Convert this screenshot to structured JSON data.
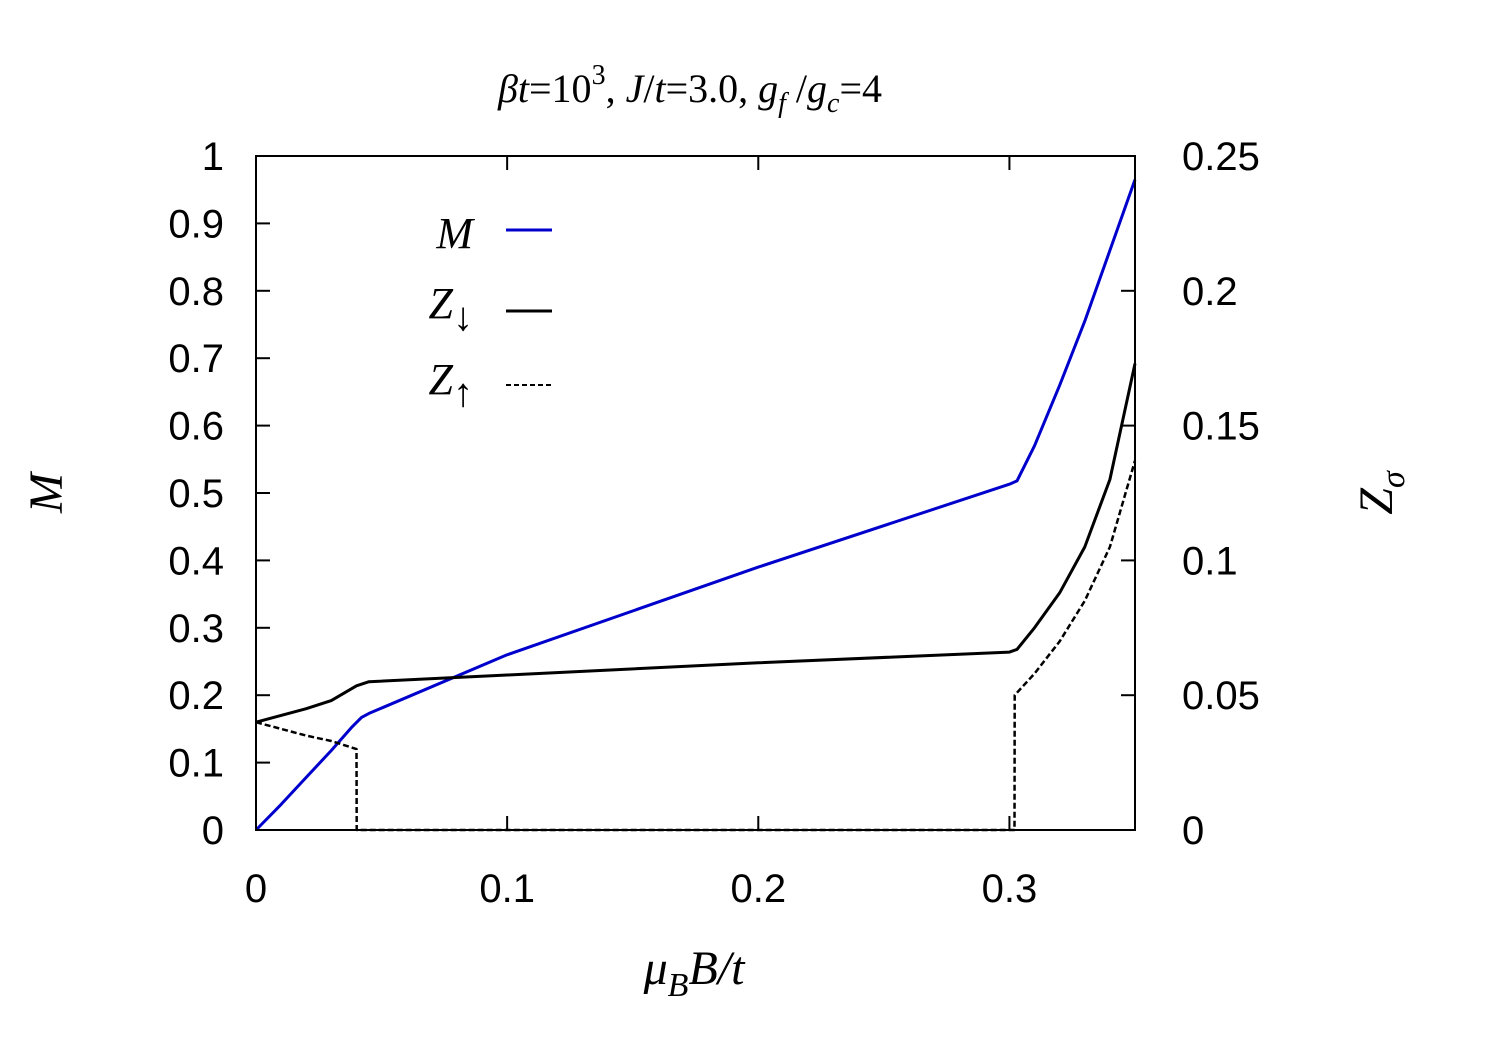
{
  "chart_data": {
    "type": "line",
    "title": "βt=10³, J/t=3.0, g_f/g_c=4",
    "xlabel": "μ_B B/t",
    "ylabel_left": "M",
    "ylabel_right": "Z_σ",
    "xlim": [
      0,
      0.35
    ],
    "ylim_left": [
      0,
      1
    ],
    "ylim_right": [
      0,
      0.25
    ],
    "x_ticks": [
      "0",
      "0.1",
      "0.2",
      "0.3"
    ],
    "y_left_ticks": [
      "0",
      "0.1",
      "0.2",
      "0.3",
      "0.4",
      "0.5",
      "0.6",
      "0.7",
      "0.8",
      "0.9",
      "1"
    ],
    "y_right_ticks": [
      "0",
      "0.05",
      "0.1",
      "0.15",
      "0.2",
      "0.25"
    ],
    "legend_position": "top-left",
    "series": [
      {
        "name": "M",
        "axis": "left",
        "color": "#0000cc",
        "dash": "solid",
        "x": [
          0,
          0.01,
          0.02,
          0.03,
          0.038,
          0.042,
          0.045,
          0.1,
          0.2,
          0.3,
          0.303,
          0.31,
          0.32,
          0.33,
          0.34,
          0.35
        ],
        "y": [
          0,
          0.038,
          0.078,
          0.118,
          0.152,
          0.167,
          0.173,
          0.26,
          0.39,
          0.513,
          0.518,
          0.57,
          0.66,
          0.755,
          0.86,
          0.965
        ]
      },
      {
        "name": "Z↓",
        "axis": "right",
        "color": "#000000",
        "dash": "solid",
        "x": [
          0,
          0.01,
          0.02,
          0.03,
          0.04,
          0.045,
          0.1,
          0.2,
          0.3,
          0.303,
          0.31,
          0.32,
          0.33,
          0.34,
          0.35
        ],
        "y": [
          0.04,
          0.0425,
          0.045,
          0.048,
          0.0535,
          0.055,
          0.0575,
          0.062,
          0.066,
          0.067,
          0.075,
          0.088,
          0.105,
          0.13,
          0.173
        ]
      },
      {
        "name": "Z↑",
        "axis": "right",
        "color": "#000000",
        "dash": "dashed",
        "x": [
          0,
          0.02,
          0.03,
          0.04,
          0.0401,
          0.1,
          0.2,
          0.302,
          0.3021,
          0.31,
          0.32,
          0.33,
          0.34,
          0.35
        ],
        "y": [
          0.04,
          0.035,
          0.033,
          0.03,
          0,
          0,
          0,
          0,
          0.05,
          0.058,
          0.07,
          0.085,
          0.105,
          0.137
        ]
      }
    ]
  }
}
